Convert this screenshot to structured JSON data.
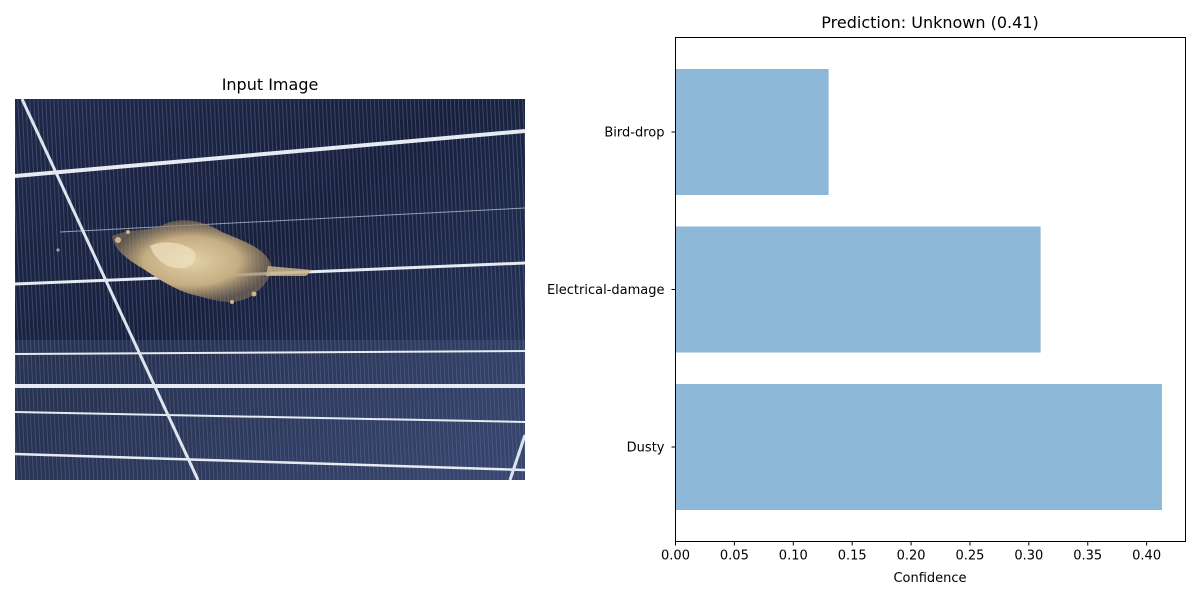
{
  "left_panel": {
    "title": "Input Image",
    "image": {
      "subject": "solar panel with bird-drop debris",
      "colors": {
        "cell_dark": "#141b33",
        "cell_mid": "#2a3558",
        "cell_light": "#4a5a85",
        "busbar": "#e6ebf2",
        "debris": "#cbb68e"
      }
    }
  },
  "chart_data": {
    "type": "bar",
    "orientation": "horizontal",
    "title": "Prediction: Unknown (0.41)",
    "xlabel": "Confidence",
    "ylabel": "",
    "categories": [
      "Bird-drop",
      "Electrical-damage",
      "Dusty"
    ],
    "values": [
      0.13,
      0.31,
      0.413
    ],
    "xlim": [
      0,
      0.433
    ],
    "xticks": [
      0.0,
      0.05,
      0.1,
      0.15,
      0.2,
      0.25,
      0.3,
      0.35,
      0.4
    ],
    "xtick_labels": [
      "0.00",
      "0.05",
      "0.10",
      "0.15",
      "0.20",
      "0.25",
      "0.30",
      "0.35",
      "0.40"
    ],
    "bar_color": "#8db8d8",
    "grid": false,
    "legend": "none"
  }
}
